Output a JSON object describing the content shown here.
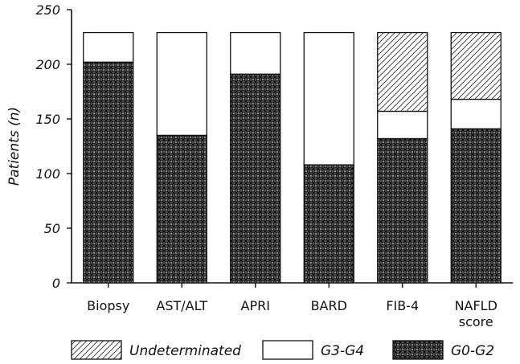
{
  "chart_data": {
    "type": "bar",
    "stacked": true,
    "categories": [
      "Biopsy",
      "AST/ALT",
      "APRI",
      "BARD",
      "FIB-4",
      "NAFLD score"
    ],
    "category_lines": [
      [
        "Biopsy"
      ],
      [
        "AST/ALT"
      ],
      [
        "APRI"
      ],
      [
        "BARD"
      ],
      [
        "FIB-4"
      ],
      [
        "NAFLD",
        "score"
      ]
    ],
    "series": [
      {
        "name": "G0-G2",
        "values": [
          202,
          135,
          191,
          108,
          132,
          141
        ],
        "pattern": "crosshatch-dense"
      },
      {
        "name": "G3-G4",
        "values": [
          27,
          94,
          38,
          121,
          25,
          27
        ],
        "pattern": "white"
      },
      {
        "name": "Undeterminated",
        "values": [
          0,
          0,
          0,
          0,
          72,
          61
        ],
        "pattern": "diagonal-hatch"
      }
    ],
    "ylabel": "Patients (n)",
    "xlabel": "",
    "ylim": [
      0,
      250
    ],
    "yticks": [
      0,
      50,
      100,
      150,
      200,
      250
    ],
    "grid": false,
    "legend": {
      "placement": "bottom",
      "order": [
        "Undeterminated",
        "G3-G4",
        "G0-G2"
      ]
    }
  }
}
